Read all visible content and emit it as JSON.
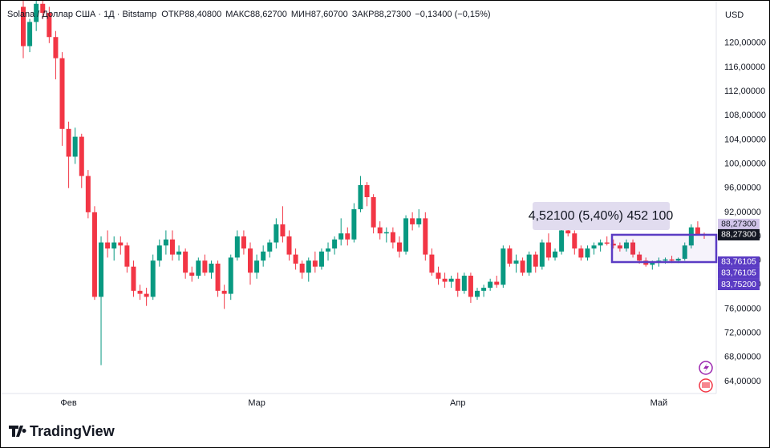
{
  "chart_data": {
    "type": "candlestick",
    "legend": {
      "symbol": "Solana / Доллар США · 1Д · Bitstamp",
      "open_label": "ОТКР",
      "open": "88,40800",
      "high_label": "МАКС",
      "high": "88,62700",
      "low_label": "МИН",
      "low": "87,60700",
      "close_label": "ЗАКР",
      "close": "88,27300",
      "change": "−0,13400 (−0,15%)"
    },
    "currency": "USD",
    "brand": "TradingView",
    "up_color": "#089981",
    "down_color": "#f23645",
    "categories": [
      null,
      null,
      null,
      null,
      null,
      null,
      null,
      "Фев",
      null,
      null,
      null,
      null,
      null,
      null,
      null,
      null,
      null,
      null,
      null,
      null,
      null,
      null,
      null,
      null,
      null,
      null,
      null,
      null,
      null,
      null,
      null,
      null,
      null,
      null,
      null,
      null,
      "Мар",
      null,
      null,
      null,
      null,
      null,
      null,
      null,
      null,
      null,
      null,
      null,
      null,
      null,
      null,
      null,
      null,
      null,
      null,
      null,
      null,
      null,
      null,
      null,
      null,
      null,
      null,
      null,
      null,
      null,
      null,
      "Апр",
      null,
      null,
      null,
      null,
      null,
      null,
      null,
      null,
      null,
      null,
      null,
      null,
      null,
      null,
      null,
      null,
      null,
      null,
      null,
      null,
      null,
      null,
      null,
      null,
      null,
      null,
      null,
      null,
      null,
      null,
      "Май",
      null,
      null,
      null,
      null,
      null,
      null,
      null
    ],
    "open": [
      126,
      119.5,
      123.5,
      126.5,
      125,
      121,
      117.5,
      105.8,
      101.2,
      104.5,
      98,
      92,
      78,
      87,
      86,
      87,
      86.5,
      83,
      79,
      78.5,
      78,
      84,
      86.5,
      87.5,
      85,
      85.5,
      82,
      81.5,
      84,
      82,
      83.5,
      79,
      78.5,
      84.5,
      88,
      86,
      82,
      84,
      85.5,
      87,
      90,
      88,
      85,
      83.5,
      82,
      84,
      83,
      85.5,
      86,
      87.5,
      88.5,
      87.5,
      92.5,
      96.5,
      94.5,
      89.5,
      88.5,
      88.7,
      87,
      85.5,
      91,
      90,
      91,
      85,
      82,
      81,
      80.5,
      81,
      79,
      81.5,
      78,
      79,
      79.5,
      80.5,
      80,
      86,
      83.5,
      84,
      82,
      85,
      83,
      87,
      84.5,
      85.5,
      89,
      88.5,
      86,
      84.5,
      86,
      86.5,
      87,
      86.8,
      86.5,
      86,
      87,
      85,
      84,
      83.3,
      83.8,
      84,
      84.2,
      84,
      84.3,
      86.5,
      89.5,
      88.408
    ],
    "high": [
      127.5,
      124,
      127,
      127.5,
      126,
      122,
      118.5,
      107,
      106,
      105,
      99,
      93,
      88,
      89,
      88,
      88,
      87,
      84,
      80,
      79.5,
      85,
      87.5,
      89,
      89,
      86.5,
      86,
      83,
      84.5,
      85,
      84,
      84,
      80,
      85,
      89,
      89,
      87,
      85,
      86.5,
      87.5,
      91,
      93,
      89,
      86,
      84,
      84.5,
      85.5,
      86,
      87,
      88,
      91,
      89.5,
      93.5,
      98,
      97,
      95,
      90.5,
      89.5,
      89.5,
      88,
      91.5,
      92,
      92.5,
      92,
      86,
      83,
      82,
      81.5,
      82,
      82,
      82,
      79.5,
      80,
      81,
      81.5,
      86.5,
      86.5,
      85,
      84.5,
      85.5,
      85.5,
      87.5,
      88.5,
      86,
      90,
      90.5,
      89,
      86.5,
      86.5,
      87,
      87.5,
      88,
      87.5,
      87,
      87.5,
      87.5,
      85.5,
      84.5,
      84,
      84.5,
      84.5,
      84.8,
      84.5,
      87,
      90,
      90.5,
      88.627
    ],
    "low": [
      117.5,
      118.5,
      122,
      124,
      120,
      114,
      103,
      96,
      100,
      96,
      91,
      77.5,
      66.7,
      84.5,
      84,
      85,
      82,
      78,
      77.5,
      76.5,
      77.5,
      83,
      85,
      84,
      84,
      81,
      80.5,
      81,
      81.5,
      81,
      78,
      76,
      77.5,
      84,
      85,
      80,
      81,
      83,
      84.5,
      86,
      87,
      84,
      82.5,
      81,
      80.5,
      82,
      82.5,
      84,
      85,
      86.5,
      86.5,
      87,
      92,
      93,
      88.5,
      87.5,
      87,
      86,
      84.5,
      85,
      89,
      89.5,
      84,
      81.5,
      80,
      79.5,
      79.5,
      78,
      78.5,
      77,
      77.5,
      78,
      79,
      79.5,
      79.5,
      83,
      82,
      81.5,
      81.5,
      82,
      82.5,
      84,
      84,
      85,
      88,
      85,
      84,
      84,
      85,
      85.5,
      86.5,
      86,
      85.5,
      85.5,
      84.5,
      83.5,
      83,
      82.5,
      83,
      83.5,
      83.6,
      83.6,
      84,
      86,
      88.2,
      87.607
    ],
    "close": [
      119.5,
      123.5,
      126.5,
      125,
      121,
      117.5,
      105.8,
      101.2,
      104.5,
      98,
      92,
      78,
      87,
      86,
      87,
      86.5,
      83,
      79,
      78.5,
      78,
      84,
      86.5,
      87.5,
      85,
      85.5,
      82,
      81.5,
      84,
      82,
      83.5,
      79,
      78.5,
      84.5,
      88,
      86,
      82,
      84,
      85.5,
      87,
      90,
      88,
      85,
      83.5,
      82,
      84,
      83,
      85.5,
      86,
      87.5,
      88.5,
      87.5,
      92.5,
      96.5,
      94.5,
      89.5,
      88.5,
      88.7,
      87,
      85.5,
      91,
      90,
      91,
      85,
      82,
      81,
      80.5,
      81,
      79,
      81.5,
      78,
      79,
      79.5,
      80.5,
      80,
      86,
      83.5,
      84,
      82,
      85,
      83,
      87,
      84.5,
      85.5,
      89,
      88.5,
      86,
      84.5,
      86,
      86.5,
      87,
      86.8,
      86.5,
      86,
      87,
      85,
      84,
      83.3,
      83.8,
      84,
      84.2,
      84,
      84.3,
      86.5,
      89.5,
      88.407,
      88.273
    ],
    "ylim": [
      62,
      127
    ],
    "yticks": [
      {
        "value": 64,
        "label": "64,00000"
      },
      {
        "value": 68,
        "label": "68,00000"
      },
      {
        "value": 72,
        "label": "72,00000"
      },
      {
        "value": 76,
        "label": "76,00000"
      },
      {
        "value": 80,
        "label": "80,00000"
      },
      {
        "value": 84,
        "label": "84,00000"
      },
      {
        "value": 88,
        "label": "88,00000"
      },
      {
        "value": 92,
        "label": "92,00000"
      },
      {
        "value": 96,
        "label": "96,00000"
      },
      {
        "value": 100,
        "label": "100,00000"
      },
      {
        "value": 104,
        "label": "104,00000"
      },
      {
        "value": 108,
        "label": "108,00000"
      },
      {
        "value": 112,
        "label": "112,00000"
      },
      {
        "value": 116,
        "label": "116,00000"
      },
      {
        "value": 120,
        "label": "120,00000"
      }
    ],
    "price_tags": [
      {
        "value": 88.273,
        "label": "88,27300"
      },
      {
        "value": 88.273,
        "label": "88,27300"
      },
      {
        "value": 83.76105,
        "label": "83,76105"
      },
      {
        "value": 83.76105,
        "label": "83,76105"
      },
      {
        "value": 83.752,
        "label": "83,75200"
      }
    ],
    "measure": {
      "label": "4,52100 (5,40%) 452 100",
      "top": 88.273,
      "bottom": 83.752
    }
  }
}
